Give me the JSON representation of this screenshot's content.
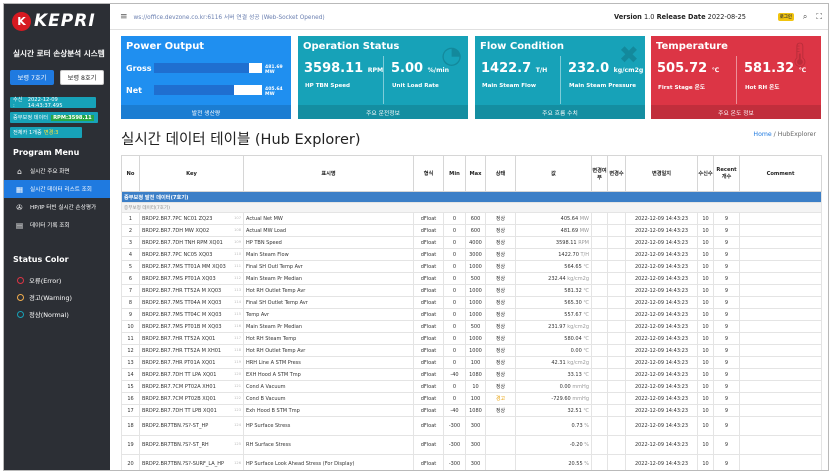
{
  "sidebar": {
    "logo_mark": "K",
    "logo_text": "KEPRI",
    "app_title": "실시간 로터 손상분석 시스템",
    "versions": [
      {
        "label": "보령 7호기"
      },
      {
        "label": "보령 8호기"
      }
    ],
    "receive_label": "수신 : ",
    "receive_value": "2022-12-09 14:43:37.495",
    "speed_label": "증부보정 데이터",
    "speed_value": "RPM:3598.11",
    "total_label": "전체카 1개중",
    "total_value": "변경:3",
    "menu_title": "Program Menu",
    "menu": [
      {
        "label": "실시간 주요 화면"
      },
      {
        "label": "실시간 데이터 리스트 조회"
      },
      {
        "label": "HP/IP 터빈 실시간 손상평가"
      },
      {
        "label": "데이터 기록 조회"
      }
    ],
    "status_title": "Status Color",
    "status": [
      {
        "label": "오류(Error)",
        "color": "#dc3545"
      },
      {
        "label": "경고(Warning)",
        "color": "#f0ad4e"
      },
      {
        "label": "정상(Normal)",
        "color": "#17a2b8"
      }
    ]
  },
  "topbar": {
    "ws_status": "ws://office.devzone.co.kr:6116 서버 연결 성공 (Web-Socket Opened)",
    "version_label": "Version",
    "version_value": "1.0",
    "release_label": "Release Date",
    "release_value": "2022-08-25",
    "badge": "로그인"
  },
  "cards": {
    "power": {
      "title": "Power Output",
      "gross_label": "Gross",
      "gross_value": "481.69 MW",
      "gross_fraction": 0.88,
      "net_label": "Net",
      "net_value": "405.64 MW",
      "net_fraction": 0.74,
      "footer": "발전 생산량"
    },
    "operation": {
      "title": "Operation Status",
      "v1": "3598.11",
      "u1": "RPM",
      "l1": "HP TBN Speed",
      "v2": "5.00",
      "u2": "%/min",
      "l2": "Unit Load Rate",
      "footer": "주요 운전정보"
    },
    "flow": {
      "title": "Flow Condition",
      "v1": "1422.7",
      "u1": "T/H",
      "l1": "Main Steam Flow",
      "v2": "232.0",
      "u2": "kg/cm2g",
      "l2": "Main Steam Pressure",
      "footer": "주요 흐름 수치"
    },
    "temp": {
      "title": "Temperature",
      "v1": "505.72",
      "u1": "℃",
      "l1": "First Stage 온도",
      "v2": "581.32",
      "u2": "℃",
      "l2": "Hot RH 온도",
      "footer": "주요 온도 정보"
    }
  },
  "page": {
    "heading": "실시간 데이터 테이블 (Hub Explorer)",
    "crumb_home": "Home",
    "crumb_sep": "/",
    "crumb_current": "HubExplorer"
  },
  "table": {
    "headers": [
      "No",
      "Key",
      "표시명",
      "형식",
      "Min",
      "Max",
      "상태",
      "값",
      "변경여부",
      "변경수",
      "변경일지",
      "수신수",
      "Recent개수",
      "Comment"
    ],
    "group": "증부보정 발전 데이터(7호기)",
    "subgroup": "증부보정 데이터(7호기)",
    "rows": [
      {
        "no": "1",
        "key": "BRDP2.BR7.7PC NC01 ZQ23",
        "tag": "107",
        "name": "Actual Net MW",
        "type": "dFloat",
        "min": "0",
        "max": "600",
        "state": "정상",
        "value": "405.64",
        "unit": "MW",
        "date": "2022-12-09 14:43:23",
        "recv": "10",
        "recent": "9"
      },
      {
        "no": "2",
        "key": "BRDP2.BR7.7DH MW XQ02",
        "tag": "108",
        "name": "Actual MW Load",
        "type": "dFloat",
        "min": "0",
        "max": "600",
        "state": "정상",
        "value": "481.69",
        "unit": "MW",
        "date": "2022-12-09 14:43:23",
        "recv": "10",
        "recent": "9"
      },
      {
        "no": "3",
        "key": "BRDP2.BR7.7DH TNH RPM XQ01",
        "tag": "109",
        "name": "HP TBN Speed",
        "type": "dFloat",
        "min": "0",
        "max": "4000",
        "state": "정상",
        "value": "3598.11",
        "unit": "RPM",
        "date": "2022-12-09 14:43:23",
        "recv": "10",
        "recent": "9"
      },
      {
        "no": "4",
        "key": "BRDP2.BR7.7PC NC05 XQ03",
        "tag": "110",
        "name": "Main Steam Flow",
        "type": "dFloat",
        "min": "0",
        "max": "3000",
        "state": "정상",
        "value": "1422.70",
        "unit": "T/H",
        "date": "2022-12-09 14:43:23",
        "recv": "10",
        "recent": "9"
      },
      {
        "no": "5",
        "key": "BRDP2.BR7.7MS TT01A MM XQ03",
        "tag": "111",
        "name": "Final SH Outl Temp Avr",
        "type": "dFloat",
        "min": "0",
        "max": "1000",
        "state": "정상",
        "value": "564.65",
        "unit": "℃",
        "date": "2022-12-09 14:43:23",
        "recv": "10",
        "recent": "9"
      },
      {
        "no": "6",
        "key": "BRDP2.BR7.7MS PT01A XQ03",
        "tag": "112",
        "name": "Main Steam Pr Median",
        "type": "dFloat",
        "min": "0",
        "max": "500",
        "state": "정상",
        "value": "232.44",
        "unit": "kg/cm2g",
        "date": "2022-12-09 14:43:23",
        "recv": "10",
        "recent": "9"
      },
      {
        "no": "7",
        "key": "BRDP2.BR7.7HR TT52A M XQ03",
        "tag": "113",
        "name": "Hot RH Outlet Temp Avr",
        "type": "dFloat",
        "min": "0",
        "max": "1000",
        "state": "정상",
        "value": "581.32",
        "unit": "℃",
        "date": "2022-12-09 14:43:23",
        "recv": "10",
        "recent": "9"
      },
      {
        "no": "8",
        "key": "BRDP2.BR7.7MS TT04A M XQ03",
        "tag": "114",
        "name": "Final SH Outlet Temp Avr",
        "type": "dFloat",
        "min": "0",
        "max": "1000",
        "state": "정상",
        "value": "565.30",
        "unit": "℃",
        "date": "2022-12-09 14:43:23",
        "recv": "10",
        "recent": "9"
      },
      {
        "no": "9",
        "key": "BRDP2.BR7.7MS TT04C M XQ03",
        "tag": "115",
        "name": "Temp Avr",
        "type": "dFloat",
        "min": "0",
        "max": "1000",
        "state": "정상",
        "value": "557.67",
        "unit": "℃",
        "date": "2022-12-09 14:43:23",
        "recv": "10",
        "recent": "9"
      },
      {
        "no": "10",
        "key": "BRDP2.BR7.7MS PT01B M XQ03",
        "tag": "116",
        "name": "Main Steam Pr Median",
        "type": "dFloat",
        "min": "0",
        "max": "500",
        "state": "정상",
        "value": "231.97",
        "unit": "kg/cm2g",
        "date": "2022-12-09 14:43:23",
        "recv": "10",
        "recent": "9"
      },
      {
        "no": "11",
        "key": "BRDP2.BR7.7HR TT52A XQ01",
        "tag": "117",
        "name": "Hot RH Steam Temp",
        "type": "dFloat",
        "min": "0",
        "max": "1000",
        "state": "정상",
        "value": "580.04",
        "unit": "℃",
        "date": "2022-12-09 14:43:23",
        "recv": "10",
        "recent": "9"
      },
      {
        "no": "12",
        "key": "BRDP2.BR7.7HR TT52A M XH01",
        "tag": "118",
        "name": "Hot RH Outlet Temp Avr",
        "type": "dFloat",
        "min": "0",
        "max": "1000",
        "state": "정상",
        "value": "0.00",
        "unit": "℃",
        "date": "2022-12-09 14:43:23",
        "recv": "10",
        "recent": "9"
      },
      {
        "no": "13",
        "key": "BRDP2.BR7.7HR PT01A XQ01",
        "tag": "119",
        "name": "HRH Line A STM Press",
        "type": "dFloat",
        "min": "0",
        "max": "100",
        "state": "정상",
        "value": "42.31",
        "unit": "kg/cm2g",
        "date": "2022-12-09 14:43:23",
        "recv": "10",
        "recent": "9"
      },
      {
        "no": "14",
        "key": "BRDP2.BR7.7DH TT LPA XQ01",
        "tag": "120",
        "name": "EXH Hood A STM Tmp",
        "type": "dFloat",
        "min": "-40",
        "max": "1080",
        "state": "정상",
        "value": "33.13",
        "unit": "℃",
        "date": "2022-12-09 14:43:23",
        "recv": "10",
        "recent": "9"
      },
      {
        "no": "15",
        "key": "BRDP2.BR7.7CM PT02A XH01",
        "tag": "121",
        "name": "Cond A Vacuum",
        "type": "dFloat",
        "min": "0",
        "max": "10",
        "state": "정상",
        "value": "0.00",
        "unit": "mmHg",
        "date": "2022-12-09 14:43:23",
        "recv": "10",
        "recent": "9"
      },
      {
        "no": "16",
        "key": "BRDP2.BR7.7CM PT02B XQ01",
        "tag": "122",
        "name": "Cond B Vacuum",
        "type": "dFloat",
        "min": "0",
        "max": "100",
        "state": "경고",
        "value": "-729.60",
        "unit": "mmHg",
        "date": "2022-12-09 14:43:23",
        "recv": "10",
        "recent": "9",
        "warn": true
      },
      {
        "no": "17",
        "key": "BRDP2.BR7.7DH TT LPB XQ01",
        "tag": "123",
        "name": "Exh Hood B STM Tmp",
        "type": "dFloat",
        "min": "-40",
        "max": "1080",
        "state": "정상",
        "value": "32.51",
        "unit": "℃",
        "date": "2022-12-09 14:43:23",
        "recv": "10",
        "recent": "9"
      },
      {
        "no": "18",
        "key": "BRDP2.BR7TBN.?S?-ST_HP",
        "tag": "124",
        "name": "HP Surface Stress",
        "type": "dFloat",
        "min": "-300",
        "max": "300",
        "state": "",
        "value": "0.73",
        "unit": "%",
        "date": "2022-12-09 14:43:23",
        "recv": "10",
        "recent": "9",
        "tall": true
      },
      {
        "no": "19",
        "key": "BRDP2.BR7TBN.?S?-ST_RH",
        "tag": "125",
        "name": "RH Surface Stress",
        "type": "dFloat",
        "min": "-300",
        "max": "300",
        "state": "",
        "value": "-0.20",
        "unit": "%",
        "date": "2022-12-09 14:43:23",
        "recv": "10",
        "recent": "9",
        "tall": true
      },
      {
        "no": "20",
        "key": "BRDP2.BR7TBN.?S?-SURF_LA_HP",
        "tag": "126",
        "name": "HP Surface Look Ahead Stress (For Display)",
        "type": "dFloat",
        "min": "-300",
        "max": "300",
        "state": "",
        "value": "20.55",
        "unit": "%",
        "date": "2022-12-09 14:43:23",
        "recv": "10",
        "recent": "9",
        "tall": true
      }
    ]
  }
}
